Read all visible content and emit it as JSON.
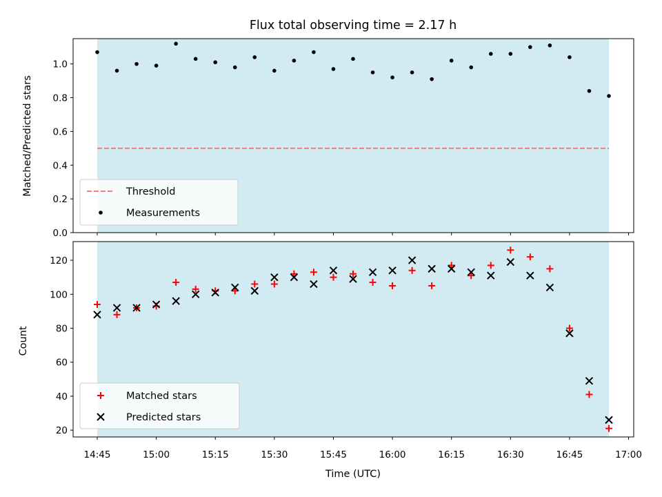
{
  "chart_data": [
    {
      "type": "scatter",
      "title": "Flux total observing time = 2.17 h",
      "xlabel": "",
      "ylabel": "Matched/Predicted stars",
      "ylim": [
        0,
        1.15
      ],
      "yticks": [
        "0.0",
        "0.2",
        "0.4",
        "0.6",
        "0.8",
        "1.0"
      ],
      "ytick_values": [
        0,
        0.2,
        0.4,
        0.6,
        0.8,
        1.0
      ],
      "x_minutes_since_1445": [
        0,
        5,
        10,
        15,
        20,
        25,
        30,
        35,
        40,
        45,
        50,
        55,
        60,
        65,
        70,
        75,
        80,
        85,
        90,
        95,
        100,
        105,
        110,
        115,
        120,
        125,
        130
      ],
      "threshold": 0.5,
      "measurements": [
        1.07,
        0.96,
        1.0,
        0.99,
        1.12,
        1.03,
        1.01,
        0.98,
        1.04,
        0.96,
        1.02,
        1.07,
        0.97,
        1.03,
        0.95,
        0.92,
        0.95,
        0.91,
        1.02,
        0.98,
        1.06,
        1.06,
        1.1,
        1.11,
        1.04,
        0.84,
        0.81
      ],
      "shaded_range_minutes": [
        0,
        130
      ],
      "legend": {
        "location": "lower-left",
        "threshold_label": "Threshold",
        "measurements_label": "Measurements"
      }
    },
    {
      "type": "scatter",
      "xlabel": "Time (UTC)",
      "ylabel": "Count",
      "ylim": [
        16,
        131
      ],
      "yticks": [
        "20",
        "40",
        "60",
        "80",
        "100",
        "120"
      ],
      "ytick_values": [
        20,
        40,
        60,
        80,
        100,
        120
      ],
      "xticks": [
        "14:45",
        "15:00",
        "15:15",
        "15:30",
        "15:45",
        "16:00",
        "16:15",
        "16:30",
        "16:45",
        "17:00"
      ],
      "xtick_minutes": [
        0,
        15,
        30,
        45,
        60,
        75,
        90,
        105,
        120,
        135
      ],
      "x_minutes_since_1445": [
        0,
        5,
        10,
        15,
        20,
        25,
        30,
        35,
        40,
        45,
        50,
        55,
        60,
        65,
        70,
        75,
        80,
        85,
        90,
        95,
        100,
        105,
        110,
        115,
        120,
        125,
        130
      ],
      "series": [
        {
          "name": "Matched stars",
          "marker": "plus",
          "color": "#ff0000",
          "values": [
            94,
            88,
            92,
            93,
            107,
            103,
            102,
            102,
            106,
            106,
            112,
            113,
            110,
            112,
            107,
            105,
            114,
            105,
            117,
            111,
            117,
            126,
            122,
            115,
            80,
            41,
            21
          ]
        },
        {
          "name": "Predicted stars",
          "marker": "x",
          "color": "#000000",
          "values": [
            88,
            92,
            92,
            94,
            96,
            100,
            101,
            104,
            102,
            110,
            110,
            106,
            114,
            109,
            113,
            114,
            120,
            115,
            115,
            113,
            111,
            119,
            111,
            104,
            77,
            49,
            26
          ]
        }
      ],
      "shaded_range_minutes": [
        0,
        130
      ],
      "legend": {
        "location": "lower-left"
      }
    }
  ],
  "colors": {
    "shade": "#add8e6",
    "threshold": "#f08080",
    "measurement": "#000000"
  }
}
